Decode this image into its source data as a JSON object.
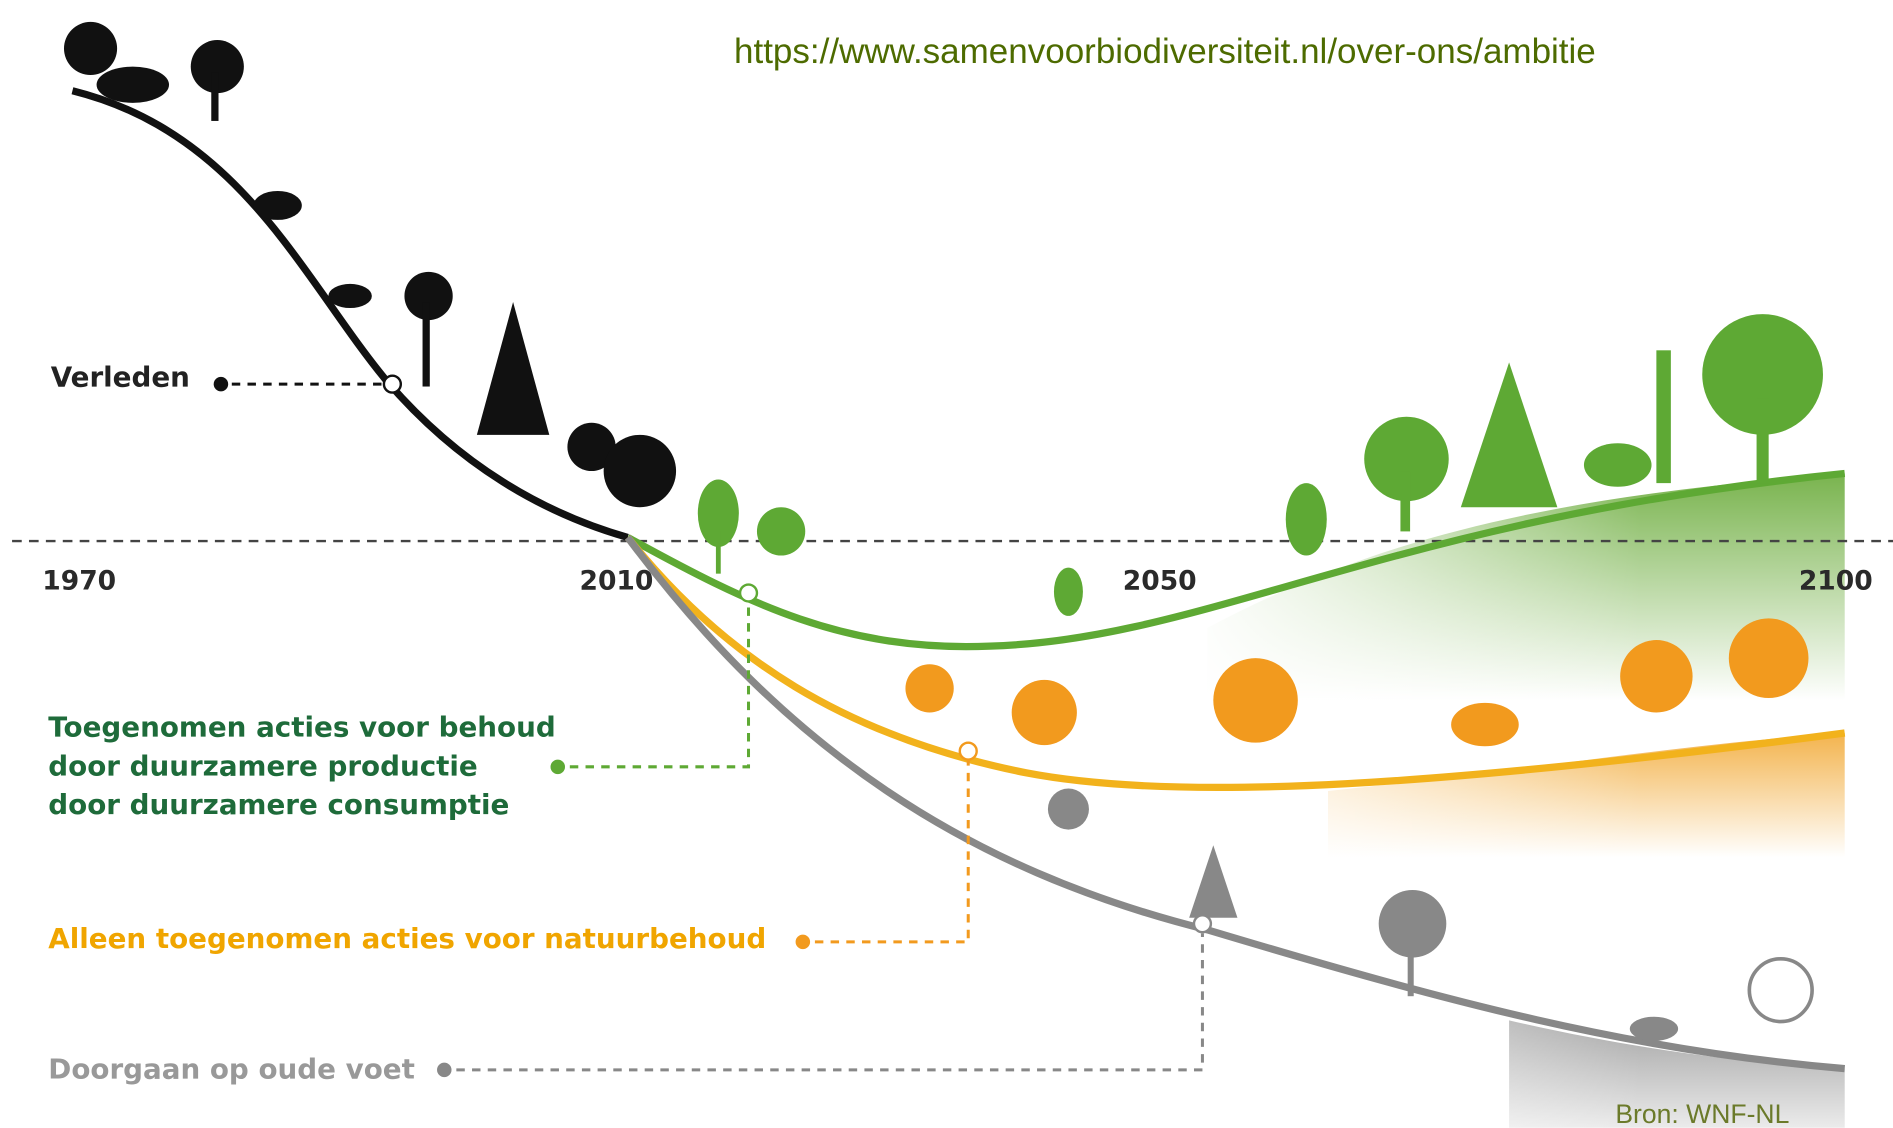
{
  "url": "https://www.samenvoorbiodiversiteit.nl/over-ons/ambitie",
  "timeline": [
    "1970",
    "2010",
    "2050",
    "2100"
  ],
  "scenarios": {
    "past": "Verleden",
    "increased_actions": [
      "Toegenomen acties voor behoud",
      "door duurzamere productie",
      "door duurzamere consumptie"
    ],
    "conservation_only": "Alleen toegenomen acties voor natuurbehoud",
    "business_as_usual": "Doorgaan op oude voet"
  },
  "source": "Bron: WNF-NL"
}
